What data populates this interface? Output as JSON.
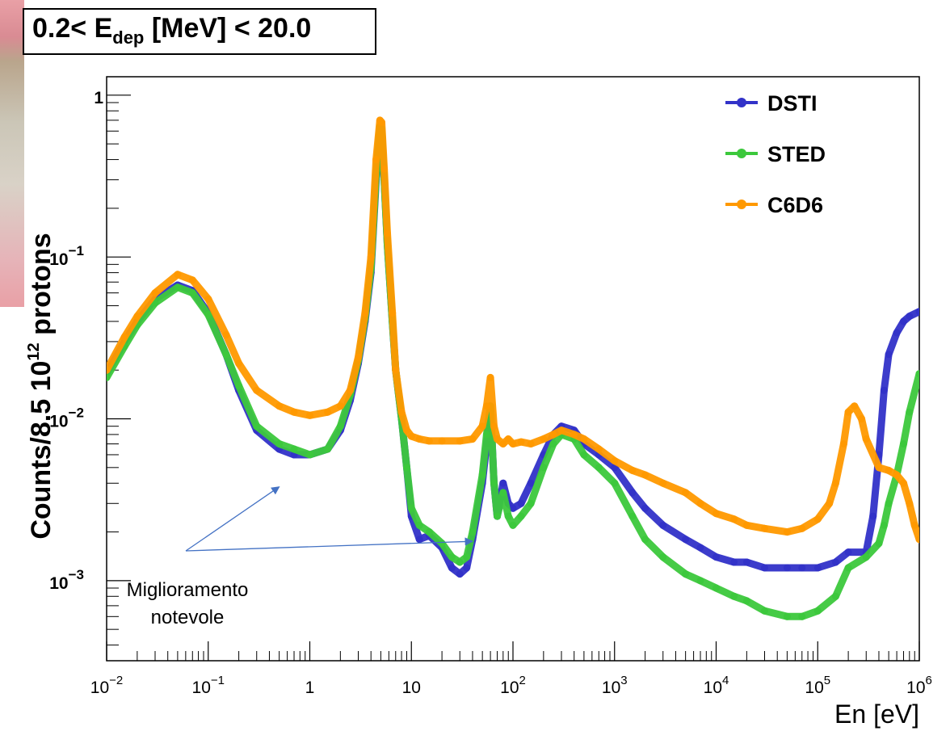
{
  "chart_data": {
    "type": "line",
    "title_main": "0.2< E",
    "title_sub": "dep",
    "title_rest": " [MeV] < 20.0",
    "xlabel": "En [eV]",
    "ylabel_part1": "Counts/8.5 10",
    "ylabel_sup": "12",
    "ylabel_part2": " protons",
    "x_scale": "log",
    "y_scale": "log",
    "xlim": [
      0.01,
      1000000
    ],
    "ylim": [
      0.00032,
      1.3
    ],
    "x_ticks": [
      {
        "base": "10",
        "exp": "−2",
        "value": 0.01
      },
      {
        "base": "10",
        "exp": "−1",
        "value": 0.1
      },
      {
        "base": "1",
        "exp": "",
        "value": 1
      },
      {
        "base": "10",
        "exp": "",
        "value": 10
      },
      {
        "base": "10",
        "exp": "2",
        "value": 100
      },
      {
        "base": "10",
        "exp": "3",
        "value": 1000
      },
      {
        "base": "10",
        "exp": "4",
        "value": 10000
      },
      {
        "base": "10",
        "exp": "5",
        "value": 100000
      },
      {
        "base": "10",
        "exp": "6",
        "value": 1000000
      }
    ],
    "y_ticks": [
      {
        "base": "1",
        "exp": "",
        "value": 1
      },
      {
        "base": "10",
        "exp": "−1",
        "value": 0.1
      },
      {
        "base": "10",
        "exp": "−2",
        "value": 0.01
      },
      {
        "base": "10",
        "exp": "−3",
        "value": 0.001
      }
    ],
    "legend_position": "top-right",
    "series": [
      {
        "name": "DSTI",
        "color": "#3232c8",
        "x": [
          0.01,
          0.015,
          0.02,
          0.03,
          0.05,
          0.07,
          0.1,
          0.15,
          0.2,
          0.3,
          0.5,
          0.7,
          1,
          1.5,
          2,
          2.5,
          3,
          3.5,
          4,
          4.5,
          4.9,
          5.1,
          5.4,
          5.8,
          6.5,
          7,
          8,
          9,
          10,
          12,
          15,
          20,
          25,
          30,
          35,
          40,
          50,
          55,
          60,
          65,
          70,
          80,
          90,
          100,
          120,
          150,
          200,
          250,
          300,
          400,
          500,
          700,
          1000,
          1500,
          2000,
          3000,
          5000,
          7000,
          10000,
          15000,
          20000,
          30000,
          50000,
          70000,
          100000,
          150000,
          200000,
          300000,
          350000,
          400000,
          450000,
          500000,
          600000,
          700000,
          800000,
          1000000
        ],
        "y": [
          0.019,
          0.03,
          0.04,
          0.055,
          0.067,
          0.062,
          0.045,
          0.025,
          0.015,
          0.0085,
          0.0065,
          0.006,
          0.006,
          0.0065,
          0.0085,
          0.013,
          0.022,
          0.04,
          0.08,
          0.3,
          0.62,
          0.6,
          0.3,
          0.12,
          0.04,
          0.02,
          0.01,
          0.005,
          0.0025,
          0.0018,
          0.0019,
          0.0016,
          0.0012,
          0.0011,
          0.0012,
          0.0018,
          0.004,
          0.007,
          0.012,
          0.004,
          0.0025,
          0.004,
          0.003,
          0.0028,
          0.003,
          0.004,
          0.006,
          0.008,
          0.009,
          0.0085,
          0.007,
          0.006,
          0.005,
          0.0035,
          0.0028,
          0.0022,
          0.0018,
          0.0016,
          0.0014,
          0.0013,
          0.0013,
          0.0012,
          0.0012,
          0.0012,
          0.0012,
          0.0013,
          0.0015,
          0.0015,
          0.0025,
          0.006,
          0.015,
          0.025,
          0.034,
          0.04,
          0.043,
          0.046
        ]
      },
      {
        "name": "STED",
        "color": "#3cc83c",
        "x": [
          0.01,
          0.015,
          0.02,
          0.03,
          0.05,
          0.07,
          0.1,
          0.15,
          0.2,
          0.3,
          0.5,
          0.7,
          1,
          1.5,
          2,
          2.5,
          3,
          3.5,
          4,
          4.5,
          4.9,
          5.1,
          5.4,
          5.8,
          6.5,
          7,
          8,
          9,
          10,
          12,
          15,
          20,
          25,
          30,
          35,
          40,
          50,
          55,
          60,
          65,
          70,
          80,
          90,
          100,
          120,
          150,
          200,
          250,
          300,
          400,
          500,
          700,
          1000,
          1500,
          2000,
          3000,
          5000,
          7000,
          10000,
          15000,
          20000,
          30000,
          50000,
          70000,
          100000,
          150000,
          200000,
          300000,
          400000,
          450000,
          500000,
          600000,
          700000,
          800000,
          1000000
        ],
        "y": [
          0.018,
          0.028,
          0.038,
          0.052,
          0.065,
          0.06,
          0.044,
          0.025,
          0.016,
          0.009,
          0.007,
          0.0065,
          0.006,
          0.0065,
          0.009,
          0.014,
          0.023,
          0.042,
          0.085,
          0.32,
          0.64,
          0.62,
          0.3,
          0.12,
          0.04,
          0.02,
          0.01,
          0.005,
          0.0028,
          0.0022,
          0.002,
          0.0017,
          0.0014,
          0.0013,
          0.0014,
          0.002,
          0.0045,
          0.008,
          0.012,
          0.004,
          0.0025,
          0.0035,
          0.0025,
          0.0022,
          0.0025,
          0.003,
          0.005,
          0.007,
          0.008,
          0.0075,
          0.006,
          0.005,
          0.004,
          0.0025,
          0.0018,
          0.0014,
          0.0011,
          0.001,
          0.0009,
          0.0008,
          0.00075,
          0.00065,
          0.0006,
          0.0006,
          0.00065,
          0.0008,
          0.0012,
          0.0014,
          0.0017,
          0.0022,
          0.003,
          0.0045,
          0.007,
          0.011,
          0.019
        ]
      },
      {
        "name": "C6D6",
        "color": "#ff9900",
        "x": [
          0.01,
          0.015,
          0.02,
          0.03,
          0.05,
          0.07,
          0.1,
          0.15,
          0.2,
          0.3,
          0.5,
          0.7,
          1,
          1.5,
          2,
          2.5,
          3,
          3.5,
          4,
          4.5,
          4.9,
          5.1,
          5.4,
          5.8,
          6.5,
          7,
          8,
          9,
          10,
          12,
          15,
          20,
          30,
          40,
          50,
          55,
          60,
          65,
          70,
          80,
          90,
          100,
          120,
          150,
          200,
          250,
          300,
          400,
          500,
          700,
          1000,
          1500,
          2000,
          3000,
          5000,
          7000,
          10000,
          15000,
          20000,
          30000,
          50000,
          70000,
          100000,
          130000,
          150000,
          180000,
          200000,
          230000,
          270000,
          300000,
          400000,
          500000,
          600000,
          700000,
          800000,
          900000,
          1000000
        ],
        "y": [
          0.02,
          0.032,
          0.043,
          0.06,
          0.078,
          0.072,
          0.055,
          0.033,
          0.022,
          0.015,
          0.012,
          0.011,
          0.0105,
          0.011,
          0.012,
          0.015,
          0.024,
          0.045,
          0.1,
          0.4,
          0.7,
          0.68,
          0.35,
          0.14,
          0.045,
          0.02,
          0.011,
          0.0085,
          0.0078,
          0.0075,
          0.0073,
          0.0073,
          0.0073,
          0.0075,
          0.009,
          0.012,
          0.018,
          0.009,
          0.0075,
          0.007,
          0.0075,
          0.007,
          0.0072,
          0.007,
          0.0075,
          0.008,
          0.0085,
          0.008,
          0.0075,
          0.0065,
          0.0055,
          0.0048,
          0.0045,
          0.004,
          0.0035,
          0.003,
          0.0026,
          0.0024,
          0.0022,
          0.0021,
          0.002,
          0.0021,
          0.0024,
          0.003,
          0.004,
          0.007,
          0.011,
          0.012,
          0.01,
          0.0075,
          0.005,
          0.0048,
          0.0045,
          0.004,
          0.003,
          0.0022,
          0.0018
        ]
      }
    ],
    "annotation": {
      "lines": [
        "Miglioramento",
        "notevole"
      ],
      "arrow_targets": [
        [
          0.5,
          0.0038
        ],
        [
          40,
          0.00175
        ]
      ]
    }
  }
}
